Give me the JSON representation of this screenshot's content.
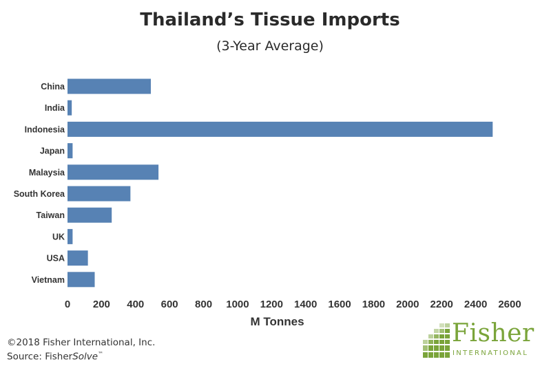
{
  "chart_data": {
    "type": "bar",
    "orientation": "horizontal",
    "title": "Thailand’s Tissue Imports",
    "subtitle": "(3-Year Average)",
    "xlabel": "M Tonnes",
    "ylabel": "",
    "categories": [
      "China",
      "India",
      "Indonesia",
      "Japan",
      "Malaysia",
      "South Korea",
      "Taiwan",
      "UK",
      "USA",
      "Vietnam"
    ],
    "values": [
      490,
      25,
      2500,
      30,
      535,
      370,
      260,
      30,
      120,
      160
    ],
    "xlim": [
      0,
      2600
    ],
    "xticks": [
      "0",
      "200",
      "400",
      "600",
      "800",
      "1000",
      "1200",
      "1400",
      "1600",
      "1800",
      "2000",
      "2200",
      "2400",
      "2600"
    ],
    "bar_color": "#5782b4",
    "grid": false,
    "legend": "none"
  },
  "footer": {
    "copyright": "©2018 Fisher International, Inc.",
    "source_prefix": "Source: Fisher",
    "source_italic": "Solve",
    "source_tm": "™"
  },
  "logo": {
    "name": "Fisher",
    "sub": "INTERNATIONAL",
    "color": "#7aa43a"
  }
}
